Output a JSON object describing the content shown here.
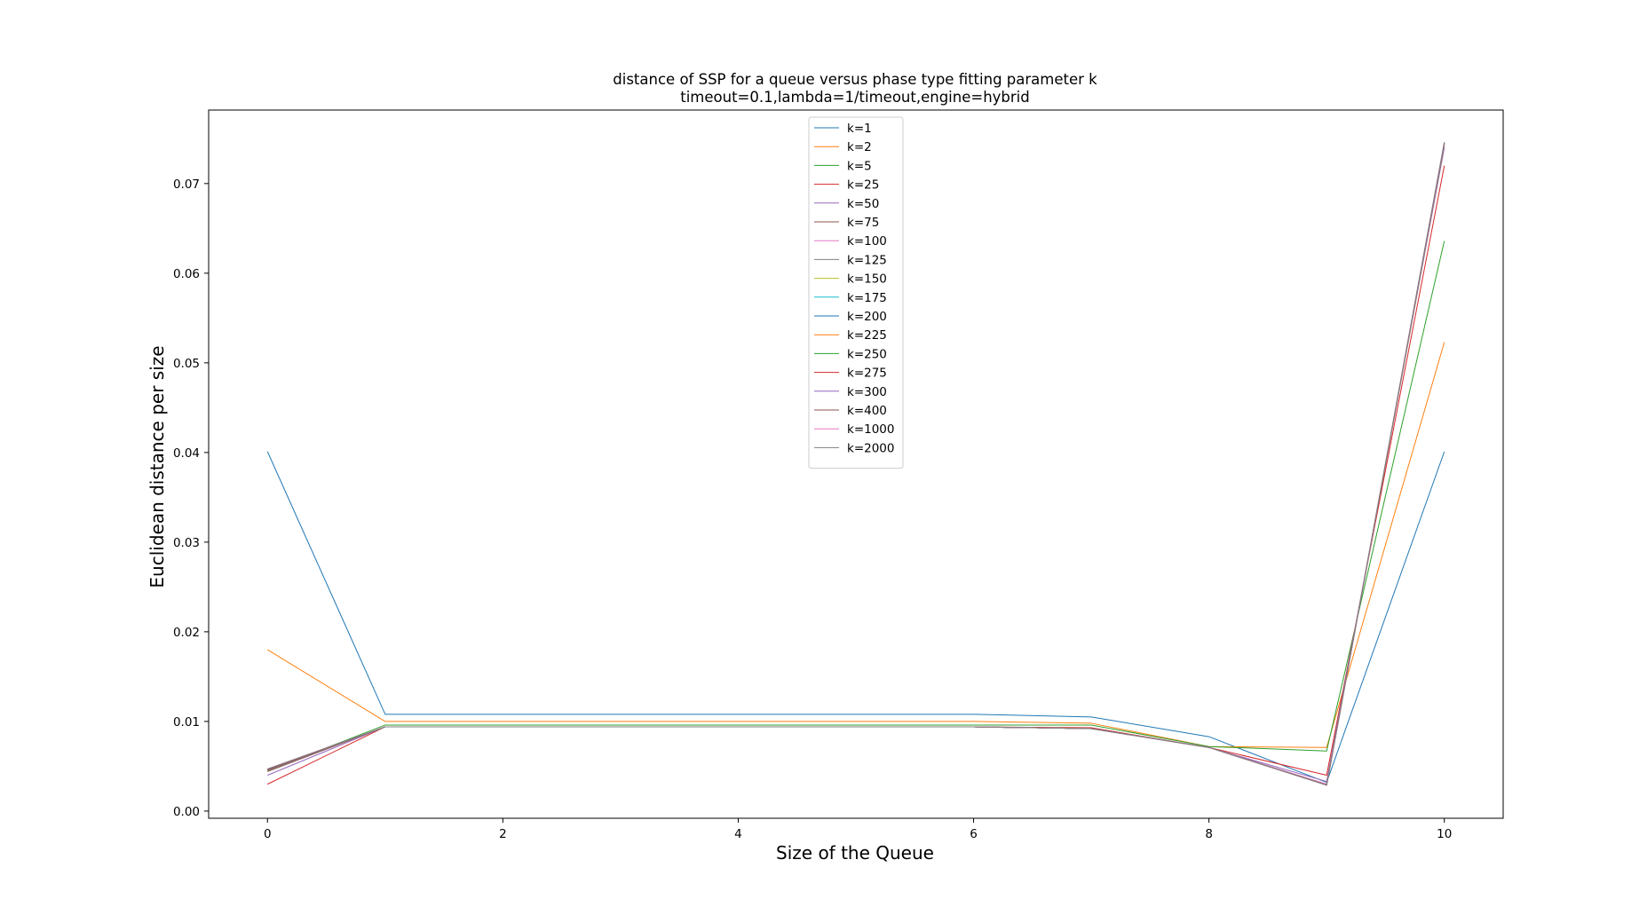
{
  "chart_data": {
    "type": "line",
    "title": "distance of SSP for a queue versus phase type fitting parameter k",
    "subtitle": "timeout=0.1,lambda=1/timeout,engine=hybrid",
    "xlabel": "Size of the Queue",
    "ylabel": "Euclidean distance per size",
    "xlim": [
      -0.5,
      10.5
    ],
    "ylim": [
      -0.0008,
      0.0782
    ],
    "xticks": [
      0,
      2,
      4,
      6,
      8,
      10
    ],
    "xtick_labels": [
      "0",
      "2",
      "4",
      "6",
      "8",
      "10"
    ],
    "yticks": [
      0.0,
      0.01,
      0.02,
      0.03,
      0.04,
      0.05,
      0.06,
      0.07
    ],
    "ytick_labels": [
      "0.00",
      "0.01",
      "0.02",
      "0.03",
      "0.04",
      "0.05",
      "0.06",
      "0.07"
    ],
    "grid": false,
    "legend_position": "top-center",
    "x": [
      0,
      1,
      2,
      3,
      4,
      5,
      6,
      7,
      8,
      9,
      10
    ],
    "series": [
      {
        "name": "k=1",
        "color": "#1f77b4",
        "values": [
          0.0401,
          0.0108,
          0.0108,
          0.0108,
          0.0108,
          0.0108,
          0.0108,
          0.0105,
          0.0083,
          0.0032,
          0.0401
        ]
      },
      {
        "name": "k=2",
        "color": "#ff7f0e",
        "values": [
          0.018,
          0.01,
          0.01,
          0.01,
          0.01,
          0.01,
          0.01,
          0.0098,
          0.0072,
          0.0071,
          0.0523
        ]
      },
      {
        "name": "k=5",
        "color": "#2ca02c",
        "values": [
          0.0045,
          0.0096,
          0.0096,
          0.0096,
          0.0096,
          0.0096,
          0.0096,
          0.0096,
          0.0072,
          0.0067,
          0.0636
        ]
      },
      {
        "name": "k=25",
        "color": "#d62728",
        "values": [
          0.003,
          0.0094,
          0.0094,
          0.0094,
          0.0094,
          0.0094,
          0.0094,
          0.0093,
          0.0071,
          0.004,
          0.072
        ]
      },
      {
        "name": "k=50",
        "color": "#9467bd",
        "values": [
          0.004,
          0.0094,
          0.0094,
          0.0094,
          0.0094,
          0.0094,
          0.0094,
          0.0092,
          0.0071,
          0.0033,
          0.074
        ]
      },
      {
        "name": "k=75",
        "color": "#8c564b",
        "values": [
          0.0044,
          0.0094,
          0.0094,
          0.0094,
          0.0094,
          0.0094,
          0.0094,
          0.0092,
          0.0071,
          0.003,
          0.0743
        ]
      },
      {
        "name": "k=100",
        "color": "#e377c2",
        "values": [
          0.0045,
          0.0094,
          0.0094,
          0.0094,
          0.0094,
          0.0094,
          0.0094,
          0.0092,
          0.0071,
          0.003,
          0.0744
        ]
      },
      {
        "name": "k=125",
        "color": "#7f7f7f",
        "values": [
          0.0045,
          0.0094,
          0.0094,
          0.0094,
          0.0094,
          0.0094,
          0.0094,
          0.0092,
          0.0071,
          0.0029,
          0.0744
        ]
      },
      {
        "name": "k=150",
        "color": "#bcbd22",
        "values": [
          0.0046,
          0.0094,
          0.0094,
          0.0094,
          0.0094,
          0.0094,
          0.0094,
          0.0092,
          0.0071,
          0.0029,
          0.0744
        ]
      },
      {
        "name": "k=175",
        "color": "#17becf",
        "values": [
          0.0046,
          0.0094,
          0.0094,
          0.0094,
          0.0094,
          0.0094,
          0.0094,
          0.0092,
          0.0071,
          0.0029,
          0.0745
        ]
      },
      {
        "name": "k=200",
        "color": "#1f77b4",
        "values": [
          0.0046,
          0.0094,
          0.0094,
          0.0094,
          0.0094,
          0.0094,
          0.0094,
          0.0092,
          0.0071,
          0.0029,
          0.0745
        ]
      },
      {
        "name": "k=225",
        "color": "#ff7f0e",
        "values": [
          0.0046,
          0.0094,
          0.0094,
          0.0094,
          0.0094,
          0.0094,
          0.0094,
          0.0092,
          0.0071,
          0.0029,
          0.0745
        ]
      },
      {
        "name": "k=250",
        "color": "#2ca02c",
        "values": [
          0.0046,
          0.0094,
          0.0094,
          0.0094,
          0.0094,
          0.0094,
          0.0094,
          0.0092,
          0.0071,
          0.0029,
          0.0745
        ]
      },
      {
        "name": "k=275",
        "color": "#d62728",
        "values": [
          0.0046,
          0.0094,
          0.0094,
          0.0094,
          0.0094,
          0.0094,
          0.0094,
          0.0092,
          0.0071,
          0.0029,
          0.0745
        ]
      },
      {
        "name": "k=300",
        "color": "#9467bd",
        "values": [
          0.0046,
          0.0094,
          0.0094,
          0.0094,
          0.0094,
          0.0094,
          0.0094,
          0.0092,
          0.0071,
          0.0029,
          0.0745
        ]
      },
      {
        "name": "k=400",
        "color": "#8c564b",
        "values": [
          0.0046,
          0.0094,
          0.0094,
          0.0094,
          0.0094,
          0.0094,
          0.0094,
          0.0092,
          0.0071,
          0.0029,
          0.0746
        ]
      },
      {
        "name": "k=1000",
        "color": "#e377c2",
        "values": [
          0.0047,
          0.0094,
          0.0094,
          0.0094,
          0.0094,
          0.0094,
          0.0094,
          0.0092,
          0.0071,
          0.0029,
          0.0746
        ]
      },
      {
        "name": "k=2000",
        "color": "#7f7f7f",
        "values": [
          0.0047,
          0.0094,
          0.0094,
          0.0094,
          0.0094,
          0.0094,
          0.0094,
          0.0092,
          0.0071,
          0.0029,
          0.0746
        ]
      }
    ]
  }
}
